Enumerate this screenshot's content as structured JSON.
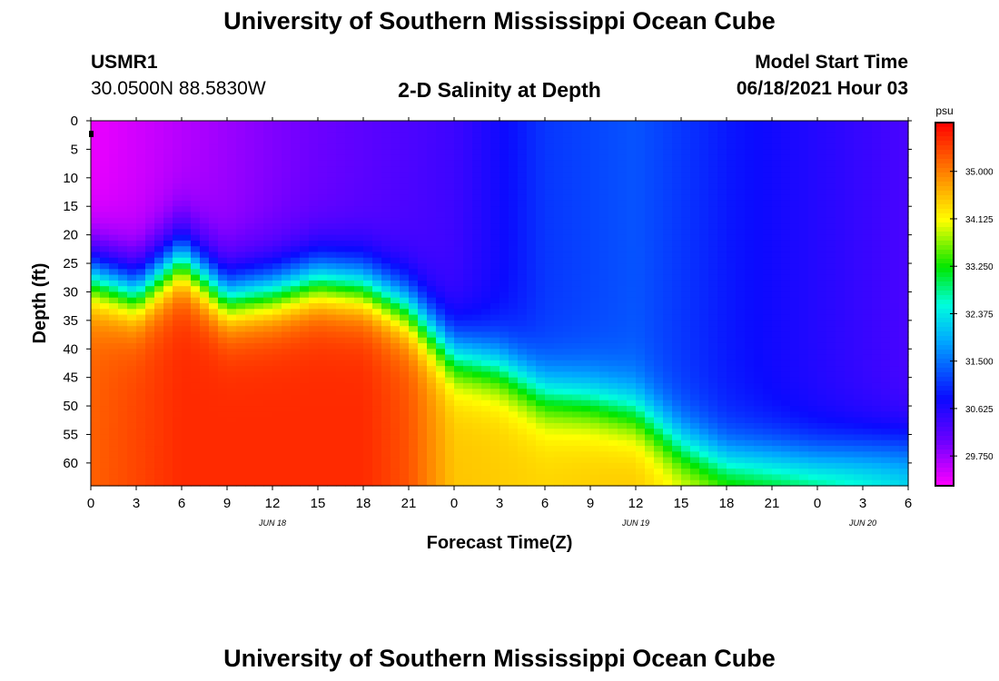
{
  "header": {
    "title": "University of Southern Mississippi Ocean Cube",
    "station": "USMR1",
    "coords": "30.0500N  88.5830W",
    "plot_title": "2-D Salinity at Depth",
    "model_label": "Model Start Time",
    "model_time": "06/18/2021 Hour 03"
  },
  "footer": {
    "title": "University of Southern Mississippi Ocean Cube"
  },
  "chart_data": {
    "type": "heatmap",
    "title": "2-D Salinity at Depth",
    "xlabel": "Forecast Time(Z)",
    "ylabel": "Depth (ft)",
    "x_range_hours": [
      0,
      54
    ],
    "ylim": [
      0,
      64
    ],
    "x_ticks": [
      {
        "h": 0,
        "label": "0"
      },
      {
        "h": 3,
        "label": "3"
      },
      {
        "h": 6,
        "label": "6"
      },
      {
        "h": 9,
        "label": "9"
      },
      {
        "h": 12,
        "label": "12"
      },
      {
        "h": 15,
        "label": "15"
      },
      {
        "h": 18,
        "label": "18"
      },
      {
        "h": 21,
        "label": "21"
      },
      {
        "h": 24,
        "label": "0"
      },
      {
        "h": 27,
        "label": "3"
      },
      {
        "h": 30,
        "label": "6"
      },
      {
        "h": 33,
        "label": "9"
      },
      {
        "h": 36,
        "label": "12"
      },
      {
        "h": 39,
        "label": "15"
      },
      {
        "h": 42,
        "label": "18"
      },
      {
        "h": 45,
        "label": "21"
      },
      {
        "h": 48,
        "label": "0"
      },
      {
        "h": 51,
        "label": "3"
      },
      {
        "h": 54,
        "label": "6"
      }
    ],
    "date_labels": [
      {
        "h": 12,
        "label": "JUN 18"
      },
      {
        "h": 36,
        "label": "JUN 19"
      },
      {
        "h": 51,
        "label": "JUN 20"
      }
    ],
    "y_ticks": [
      0,
      5,
      10,
      15,
      20,
      25,
      30,
      35,
      40,
      45,
      50,
      55,
      60
    ],
    "colorbar": {
      "unit": "psu",
      "min": 29.2,
      "max": 35.9,
      "ticks": [
        "35.000",
        "34.125",
        "33.250",
        "32.375",
        "31.500",
        "30.625",
        "29.750"
      ]
    },
    "surface_salinity_psu": [
      {
        "h": 0,
        "v": 29.3
      },
      {
        "h": 6,
        "v": 29.6
      },
      {
        "h": 12,
        "v": 29.9
      },
      {
        "h": 24,
        "v": 30.4
      },
      {
        "h": 30,
        "v": 31.1
      },
      {
        "h": 36,
        "v": 31.3
      },
      {
        "h": 42,
        "v": 30.9
      },
      {
        "h": 48,
        "v": 30.6
      },
      {
        "h": 54,
        "v": 30.3
      }
    ],
    "halocline_depth_ft": [
      {
        "h": 0,
        "v": 27
      },
      {
        "h": 3,
        "v": 30
      },
      {
        "h": 6,
        "v": 24
      },
      {
        "h": 9,
        "v": 31
      },
      {
        "h": 12,
        "v": 30
      },
      {
        "h": 15,
        "v": 28
      },
      {
        "h": 18,
        "v": 29
      },
      {
        "h": 21,
        "v": 33
      },
      {
        "h": 24,
        "v": 41
      },
      {
        "h": 27,
        "v": 43
      },
      {
        "h": 30,
        "v": 48
      },
      {
        "h": 33,
        "v": 49
      },
      {
        "h": 36,
        "v": 51
      },
      {
        "h": 39,
        "v": 57
      },
      {
        "h": 42,
        "v": 60
      },
      {
        "h": 48,
        "v": 60
      },
      {
        "h": 54,
        "v": 58
      }
    ],
    "bottom_salinity_psu": [
      {
        "h": 0,
        "v": 35.2
      },
      {
        "h": 6,
        "v": 35.6
      },
      {
        "h": 12,
        "v": 35.6
      },
      {
        "h": 18,
        "v": 35.6
      },
      {
        "h": 21,
        "v": 35.3
      },
      {
        "h": 24,
        "v": 34.5
      },
      {
        "h": 30,
        "v": 34.4
      },
      {
        "h": 36,
        "v": 34.5
      },
      {
        "h": 42,
        "v": 34.0
      },
      {
        "h": 48,
        "v": 33.4
      },
      {
        "h": 54,
        "v": 32.5
      }
    ]
  }
}
